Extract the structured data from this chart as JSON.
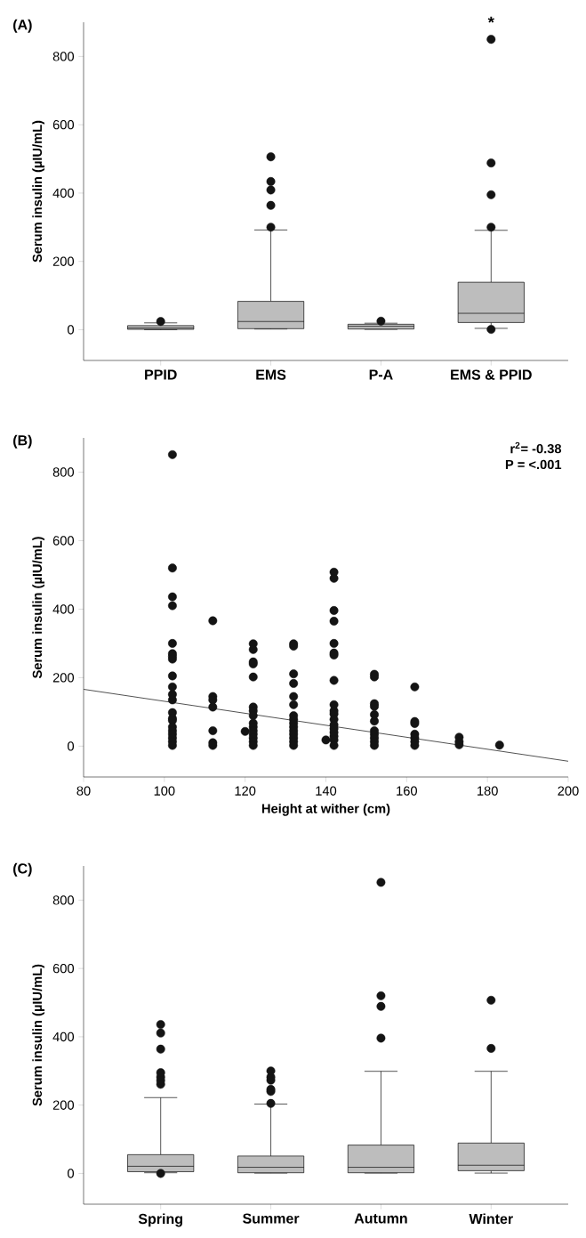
{
  "chart_data": [
    {
      "type": "box",
      "title": "(A)",
      "ylabel": "Serum insulin (µIU/mL)",
      "categories": [
        "PPID",
        "EMS",
        "P-A",
        "EMS & PPID"
      ],
      "color": "#bdbdbd",
      "marker": "circle",
      "ylim": [
        -90,
        900
      ],
      "yticks": [
        0,
        200,
        400,
        600,
        800
      ],
      "annotations": [
        "*"
      ],
      "boxes": [
        {
          "low": 0,
          "q1": 1,
          "median": 5,
          "q3": 12,
          "high": 20,
          "outliers": [
            24
          ]
        },
        {
          "low": 2,
          "q1": 3,
          "median": 24,
          "q3": 83,
          "high": 292,
          "outliers": [
            300,
            364,
            409,
            434,
            506
          ]
        },
        {
          "low": 1,
          "q1": 2,
          "median": 10,
          "q3": 16,
          "high": 19,
          "outliers": [
            25
          ]
        },
        {
          "low": 4,
          "q1": 21,
          "median": 48,
          "q3": 139,
          "high": 291,
          "outliers": [
            1,
            300,
            395,
            488,
            850
          ]
        }
      ]
    },
    {
      "type": "scatter",
      "title": "(B)",
      "xlabel": "Height at wither (cm)",
      "ylabel": "Serum insulin (µIU/mL)",
      "xlim": [
        80,
        200
      ],
      "xticks": [
        80,
        100,
        120,
        140,
        160,
        180,
        200
      ],
      "ylim": [
        -90,
        900
      ],
      "yticks": [
        0,
        200,
        400,
        600,
        800
      ],
      "annotations": [
        "r$^{2}$= -0.38",
        "P = <.001"
      ],
      "series": [
        {
          "color": "#141414",
          "marker": "circle",
          "x": [
            102,
            102,
            102,
            102,
            102,
            102,
            102,
            102,
            102,
            102,
            102,
            102,
            102,
            102,
            102,
            102,
            102,
            102,
            102,
            102,
            102,
            112,
            112,
            112,
            112,
            112,
            112,
            112,
            120,
            122,
            122,
            122,
            122,
            122,
            122,
            122,
            122,
            122,
            122,
            122,
            122,
            122,
            122,
            122,
            132,
            132,
            132,
            132,
            132,
            132,
            132,
            132,
            132,
            132,
            132,
            132,
            132,
            132,
            132,
            140,
            142,
            142,
            142,
            142,
            142,
            142,
            142,
            142,
            142,
            142,
            142,
            142,
            142,
            142,
            142,
            142,
            142,
            142,
            152,
            152,
            152,
            152,
            152,
            152,
            152,
            152,
            152,
            152,
            152,
            162,
            162,
            162,
            162,
            162,
            162,
            162,
            173,
            173,
            173,
            183
          ],
          "values": [
            851,
            520,
            436,
            410,
            300,
            270,
            262,
            254,
            205,
            173,
            151,
            135,
            98,
            81,
            75,
            56,
            45,
            35,
            24,
            13,
            2,
            366,
            145,
            135,
            114,
            45,
            10,
            2,
            43,
            299,
            282,
            246,
            240,
            202,
            114,
            103,
            89,
            67,
            56,
            45,
            35,
            24,
            13,
            2,
            299,
            292,
            211,
            183,
            145,
            121,
            89,
            78,
            67,
            56,
            45,
            35,
            24,
            13,
            2,
            18,
            508,
            490,
            396,
            365,
            300,
            272,
            266,
            192,
            121,
            103,
            94,
            78,
            62,
            51,
            40,
            29,
            18,
            2,
            210,
            202,
            124,
            116,
            92,
            73,
            45,
            35,
            24,
            13,
            2,
            173,
            72,
            66,
            35,
            24,
            13,
            2,
            26,
            13,
            4,
            3
          ]
        },
        {
          "type": "line",
          "color": "#262626",
          "marker": "none",
          "x": [
            80,
            200
          ],
          "values": [
            166,
            -44
          ]
        }
      ]
    },
    {
      "type": "box",
      "title": "(C)",
      "ylabel": "Serum insulin (µIU/mL)",
      "categories": [
        "Spring",
        "Summer",
        "Autumn",
        "Winter"
      ],
      "color": "#bdbdbd",
      "marker": "circle",
      "ylim": [
        -90,
        900
      ],
      "yticks": [
        0,
        200,
        400,
        600,
        800
      ],
      "boxes": [
        {
          "low": 2,
          "q1": 5,
          "median": 21,
          "q3": 55,
          "high": 222,
          "outliers": [
            0,
            261,
            272,
            282,
            295,
            364,
            411,
            436
          ]
        },
        {
          "low": 1,
          "q1": 2,
          "median": 18,
          "q3": 51,
          "high": 203,
          "outliers": [
            205,
            240,
            246,
            273,
            282,
            300
          ]
        },
        {
          "low": 1,
          "q1": 2,
          "median": 18,
          "q3": 83,
          "high": 299,
          "outliers": [
            396,
            489,
            520,
            852
          ]
        },
        {
          "low": 1,
          "q1": 8,
          "median": 24,
          "q3": 89,
          "high": 299,
          "outliers": [
            366,
            507
          ]
        }
      ]
    }
  ]
}
